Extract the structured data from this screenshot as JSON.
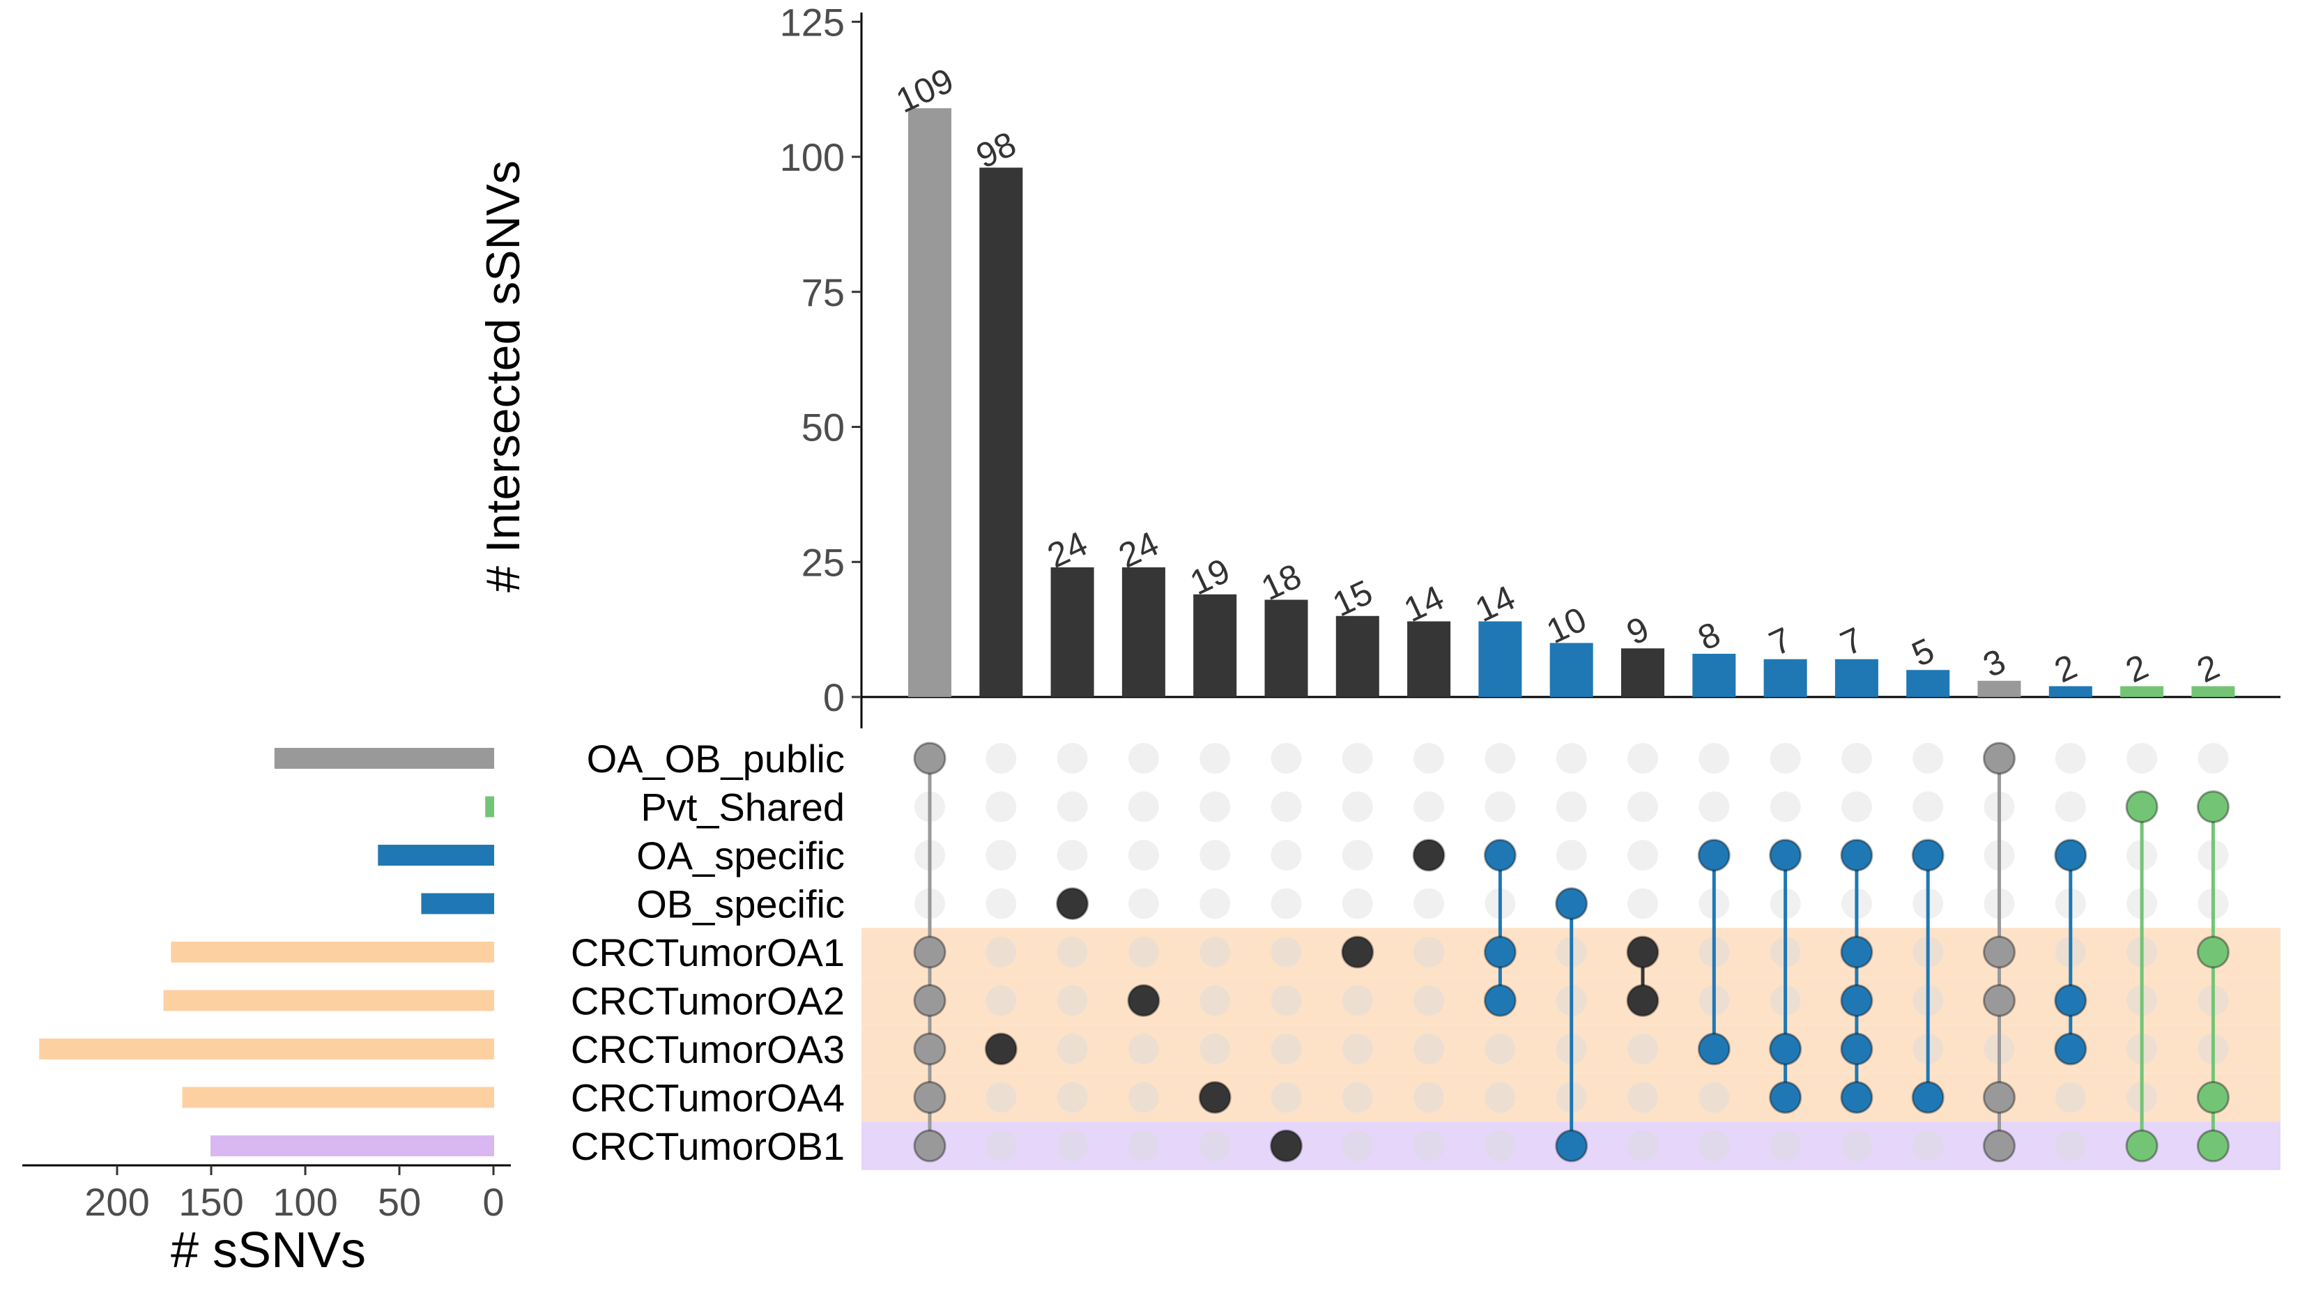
{
  "chart_data": {
    "type": "upset",
    "title": "",
    "intersection_axis": {
      "ylabel": "# Intersected sSNVs",
      "ylim": [
        0,
        125
      ],
      "ticks": [
        0,
        25,
        50,
        75,
        100,
        125
      ]
    },
    "set_size_axis": {
      "xlabel": "# sSNVs",
      "xlim": [
        250,
        0
      ],
      "ticks": [
        200,
        150,
        100,
        50,
        0
      ]
    },
    "sets": [
      {
        "name": "OA_OB_public",
        "size": 116,
        "bar_color": "#999999",
        "band": null
      },
      {
        "name": "Pvt_Shared",
        "size": 4,
        "bar_color": "#74c476",
        "band": null
      },
      {
        "name": "OA_specific",
        "size": 61,
        "bar_color": "#1f78b4",
        "band": null
      },
      {
        "name": "OB_specific",
        "size": 38,
        "bar_color": "#1f78b4",
        "band": null
      },
      {
        "name": "CRCTumorOA1",
        "size": 171,
        "bar_color": "#fdd0a2",
        "band": "#fde2c8"
      },
      {
        "name": "CRCTumorOA2",
        "size": 175,
        "bar_color": "#fdd0a2",
        "band": "#fde2c8"
      },
      {
        "name": "CRCTumorOA3",
        "size": 241,
        "bar_color": "#fdd0a2",
        "band": "#fde2c8"
      },
      {
        "name": "CRCTumorOA4",
        "size": 165,
        "bar_color": "#fdd0a2",
        "band": "#fde2c8"
      },
      {
        "name": "CRCTumorOB1",
        "size": 150,
        "bar_color": "#d9b8f2",
        "band": "#e5d6fa"
      }
    ],
    "intersections": [
      {
        "value": 109,
        "color": "#999999",
        "sets": [
          0,
          4,
          5,
          6,
          7,
          8
        ]
      },
      {
        "value": 98,
        "color": "#363636",
        "sets": [
          6
        ]
      },
      {
        "value": 24,
        "color": "#363636",
        "sets": [
          3
        ]
      },
      {
        "value": 24,
        "color": "#363636",
        "sets": [
          5
        ]
      },
      {
        "value": 19,
        "color": "#363636",
        "sets": [
          7
        ]
      },
      {
        "value": 18,
        "color": "#363636",
        "sets": [
          8
        ]
      },
      {
        "value": 15,
        "color": "#363636",
        "sets": [
          4
        ]
      },
      {
        "value": 14,
        "color": "#363636",
        "sets": [
          2
        ]
      },
      {
        "value": 14,
        "color": "#1f78b4",
        "sets": [
          2,
          4,
          5
        ]
      },
      {
        "value": 10,
        "color": "#1f78b4",
        "sets": [
          3,
          8
        ]
      },
      {
        "value": 9,
        "color": "#363636",
        "sets": [
          4,
          5
        ]
      },
      {
        "value": 8,
        "color": "#1f78b4",
        "sets": [
          2,
          6
        ]
      },
      {
        "value": 7,
        "color": "#1f78b4",
        "sets": [
          2,
          6,
          7
        ]
      },
      {
        "value": 7,
        "color": "#1f78b4",
        "sets": [
          2,
          4,
          5,
          6,
          7
        ]
      },
      {
        "value": 5,
        "color": "#1f78b4",
        "sets": [
          2,
          7
        ]
      },
      {
        "value": 3,
        "color": "#999999",
        "sets": [
          0,
          4,
          5,
          7,
          8
        ]
      },
      {
        "value": 2,
        "color": "#1f78b4",
        "sets": [
          2,
          5,
          6
        ]
      },
      {
        "value": 2,
        "color": "#74c476",
        "sets": [
          1,
          8
        ]
      },
      {
        "value": 2,
        "color": "#74c476",
        "sets": [
          1,
          4,
          7,
          8
        ]
      }
    ],
    "empty_dot_color": "#f0f0f0"
  }
}
